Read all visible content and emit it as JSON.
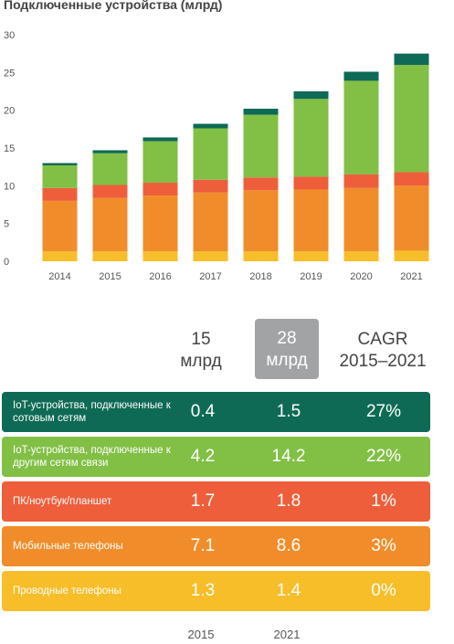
{
  "chart_data": {
    "type": "bar",
    "stacked": true,
    "title": "Подключенные устройства (млрд)",
    "categories": [
      "2014",
      "2015",
      "2016",
      "2017",
      "2018",
      "2019",
      "2020",
      "2021"
    ],
    "ylim": [
      0,
      30
    ],
    "yticks": [
      0,
      5,
      10,
      15,
      20,
      25,
      30
    ],
    "grid": false,
    "series": [
      {
        "name": "Проводные телефоны",
        "color": "#f7be2a",
        "values": [
          1.3,
          1.3,
          1.3,
          1.3,
          1.3,
          1.3,
          1.3,
          1.4
        ]
      },
      {
        "name": "Мобильные телефоны",
        "color": "#f08d2a",
        "values": [
          6.7,
          7.1,
          7.4,
          7.8,
          8.1,
          8.2,
          8.4,
          8.6
        ]
      },
      {
        "name": "ПК/ноутбук/планшет",
        "color": "#ee5e3b",
        "values": [
          1.7,
          1.7,
          1.7,
          1.7,
          1.7,
          1.7,
          1.8,
          1.8
        ]
      },
      {
        "name": "IoT-устройства, подключенные к другим сетям связи",
        "color": "#82bf45",
        "values": [
          3.0,
          4.2,
          5.5,
          6.8,
          8.3,
          10.3,
          12.4,
          14.2
        ]
      },
      {
        "name": "IoT-устройства, подключенные к сотовым сетям",
        "color": "#0e6a55",
        "values": [
          0.3,
          0.4,
          0.5,
          0.6,
          0.8,
          1.0,
          1.2,
          1.5
        ]
      }
    ]
  },
  "table": {
    "col_2015": "15\nмлрд",
    "col_2021": "28\nмлрд",
    "col_cagr": "CAGR\n2015–2021",
    "rows": [
      {
        "label": "IoT-устройства, подключенные к сотовым сетям",
        "v2015": "0.4",
        "v2021": "1.5",
        "cagr": "27%",
        "color": "#0e6a55"
      },
      {
        "label": "IoT-устройства, подключенные к другим сетям связи",
        "v2015": "4.2",
        "v2021": "14.2",
        "cagr": "22%",
        "color": "#82bf45"
      },
      {
        "label": "ПК/ноутбук/планшет",
        "v2015": "1.7",
        "v2021": "1.8",
        "cagr": "1%",
        "color": "#ee5e3b"
      },
      {
        "label": "Мобильные телефоны",
        "v2015": "7.1",
        "v2021": "8.6",
        "cagr": "3%",
        "color": "#f08d2a"
      },
      {
        "label": "Проводные телефоны",
        "v2015": "1.3",
        "v2021": "1.4",
        "cagr": "0%",
        "color": "#f7be2a"
      }
    ],
    "footer_2015": "2015",
    "footer_2021": "2021"
  }
}
